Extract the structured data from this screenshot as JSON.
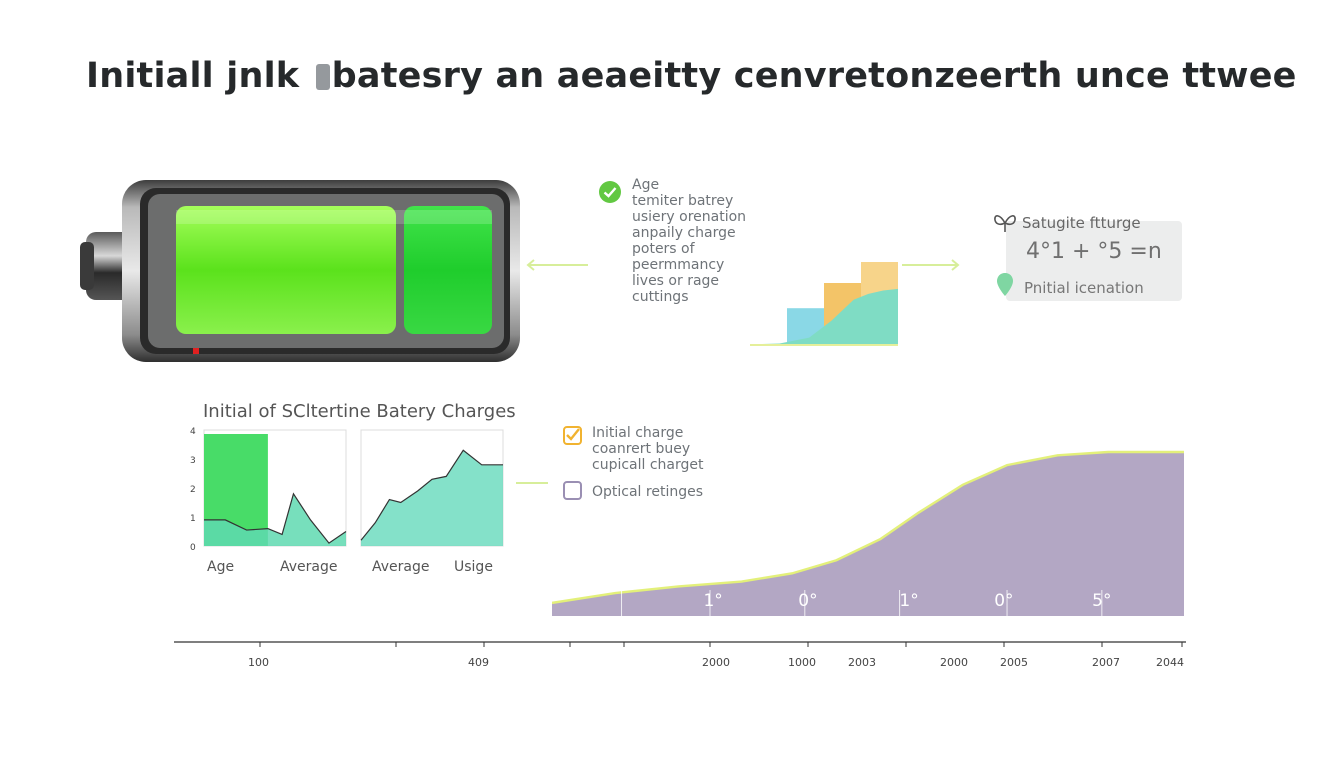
{
  "title": {
    "before": "Initiall jnlk ",
    "after": "batesry an aeaeitty cenvretonzeerth unce ttwee"
  },
  "battery_notes": {
    "icon": "check-circle-icon",
    "color": "#62c842",
    "lines": [
      "Age",
      "temiter batrey",
      "usiery orenation",
      "anpaily charge",
      "poters of",
      "peermmancy",
      "lives or rage",
      "cuttings"
    ]
  },
  "card": {
    "heading": "Satugite ftturge",
    "value": "4°1 + °5 =n",
    "subtitle": "Pnitial icenation",
    "icon": "butterfly-icon",
    "pin_icon": "location-pin-icon"
  },
  "legend": {
    "items": [
      {
        "icon": "checkbox-checked-icon",
        "color": "#f1b330",
        "lines": [
          "Initial charge",
          "coanrert buey",
          "cupicall charget"
        ]
      },
      {
        "icon": "checkbox-empty-icon",
        "color": "#9a8fb3",
        "lines": [
          "Optical retinges"
        ]
      }
    ]
  },
  "chart_data": [
    {
      "type": "area",
      "title": "Initial of SCltertine Batery Charges",
      "panel": "left",
      "y_ticks": [
        "0",
        "1",
        "2",
        "3",
        "4"
      ],
      "category_labels": [
        "Age",
        "Average"
      ],
      "highlight": {
        "x_range": [
          0,
          0.45
        ],
        "color": "#48dc68"
      },
      "series": [
        {
          "x": [
            0,
            0.15,
            0.3,
            0.45,
            0.55,
            0.63,
            0.75,
            0.88,
            1.0
          ],
          "values": [
            0.9,
            0.9,
            0.55,
            0.6,
            0.4,
            1.8,
            0.9,
            0.1,
            0.5
          ]
        }
      ],
      "ylim": [
        0,
        4
      ]
    },
    {
      "type": "area",
      "panel": "right",
      "category_labels": [
        "Average",
        "Usige"
      ],
      "series": [
        {
          "x": [
            0,
            0.1,
            0.2,
            0.28,
            0.4,
            0.5,
            0.6,
            0.72,
            0.85,
            1.0
          ],
          "values": [
            0.2,
            0.8,
            1.6,
            1.5,
            1.9,
            2.3,
            2.4,
            3.3,
            2.8,
            2.8
          ]
        }
      ],
      "ylim": [
        0,
        4
      ]
    },
    {
      "type": "area",
      "panel": "small-center",
      "steps": [
        {
          "x": [
            0.25,
            0.5
          ],
          "value": 0.45,
          "color": "#8ad8e6"
        },
        {
          "x": [
            0.5,
            0.75
          ],
          "value": 0.75,
          "color": "#f3c468"
        },
        {
          "x": [
            0.75,
            1.0
          ],
          "value": 1.0,
          "color": "#f7d48a"
        }
      ],
      "series": [
        {
          "x": [
            0,
            0.2,
            0.4,
            0.55,
            0.7,
            0.8,
            0.9,
            1.0
          ],
          "values": [
            0.02,
            0.03,
            0.1,
            0.3,
            0.55,
            0.62,
            0.66,
            0.68
          ],
          "color": "#7fdcc4"
        }
      ],
      "ylim": [
        0,
        1
      ]
    },
    {
      "type": "area",
      "panel": "large",
      "color": "#b3a7c4",
      "line_color": "#e3f07a",
      "x": [
        0,
        0.1,
        0.2,
        0.3,
        0.38,
        0.45,
        0.52,
        0.58,
        0.65,
        0.72,
        0.8,
        0.88,
        0.95,
        1.0
      ],
      "values": [
        0.08,
        0.14,
        0.18,
        0.21,
        0.26,
        0.34,
        0.47,
        0.63,
        0.8,
        0.92,
        0.98,
        1.0,
        1.0,
        1.0
      ],
      "ylim": [
        0,
        1
      ],
      "inner_labels": [
        "1°",
        "0°",
        "1°",
        "0°",
        "5°"
      ]
    }
  ],
  "axis": {
    "labels": [
      "100",
      "409",
      "2000",
      "1000",
      "2003",
      "2000",
      "2005",
      "2007",
      "2044"
    ]
  }
}
